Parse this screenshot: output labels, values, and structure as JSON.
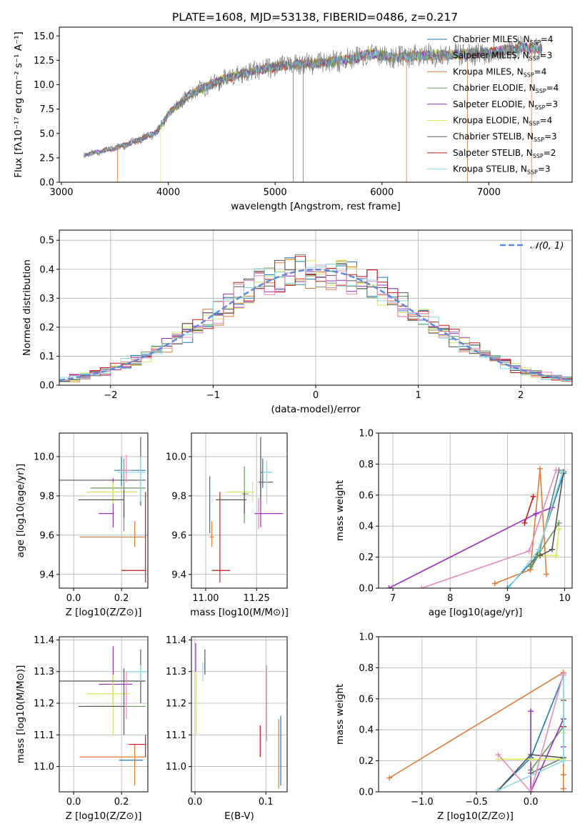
{
  "title": "PLATE=1608, MJD=53138, FIBERID=0486, z=0.217",
  "colors": {
    "chabrier_miles": "#1f77b4",
    "salpeter_miles": "#777777",
    "kroupa_miles": "#e07b39",
    "chabrier_elodie": "#6a9a5b",
    "salpeter_elodie": "#9a2fbf",
    "kroupa_elodie": "#d4e85a",
    "chabrier_stelib": "#555555",
    "salpeter_stelib": "#c41818",
    "kroupa_stelib": "#88dede",
    "pink": "#e38cc0",
    "normal": "#5b8bd9"
  },
  "chart_data": [
    {
      "id": "spectrum",
      "type": "line",
      "xlabel": "wavelength [Angstrom, rest frame]",
      "ylabel": "Flux [fλ10⁻¹⁷ erg cm⁻² s⁻¹ A⁻¹]",
      "xlim": [
        2980,
        7780
      ],
      "ylim": [
        0,
        15.9
      ],
      "xticks": [
        3000,
        4000,
        5000,
        6000,
        7000
      ],
      "yticks": [
        0.0,
        2.5,
        5.0,
        7.5,
        10.0,
        12.5,
        15.0
      ],
      "grid": false,
      "legend_position": "right",
      "approx_continuum": {
        "x": [
          3200,
          3300,
          3500,
          3700,
          3900,
          4000,
          4200,
          4500,
          4800,
          5100,
          5400,
          5700,
          5900,
          6100,
          6400,
          6700,
          7000,
          7300,
          7500
        ],
        "y": [
          2.8,
          3.0,
          3.5,
          4.2,
          5.2,
          7.0,
          9.0,
          10.5,
          11.4,
          12.0,
          12.2,
          12.6,
          13.2,
          12.8,
          13.0,
          13.1,
          13.3,
          13.8,
          13.6
        ]
      },
      "legend": [
        {
          "label": "Chabrier MILES, N",
          "suffix": "=4",
          "color": "#1f77b4"
        },
        {
          "label": "Salpeter MILES, N",
          "suffix": "=3",
          "color": "#777777"
        },
        {
          "label": "Kroupa MILES, N",
          "suffix": "=4",
          "color": "#e07b39"
        },
        {
          "label": "Chabrier ELODIE, N",
          "suffix": "=4",
          "color": "#6a9a5b"
        },
        {
          "label": "Salpeter ELODIE, N",
          "suffix": "=3",
          "color": "#9a2fbf"
        },
        {
          "label": "Kroupa ELODIE, N",
          "suffix": "=4",
          "color": "#d4e85a"
        },
        {
          "label": "Chabrier STELIB, N",
          "suffix": "=3",
          "color": "#555555"
        },
        {
          "label": "Salpeter STELIB, N",
          "suffix": "=2",
          "color": "#c41818"
        },
        {
          "label": "Kroupa STELIB, N",
          "suffix": "=3",
          "color": "#88dede"
        }
      ]
    },
    {
      "id": "residuals",
      "type": "histogram",
      "xlabel": "(data-model)/error",
      "ylabel": "Normed distribution",
      "xlim": [
        -2.5,
        2.5
      ],
      "ylim": [
        0,
        0.535
      ],
      "xticks": [
        -2,
        -1,
        0,
        1,
        2
      ],
      "yticks": [
        0.0,
        0.1,
        0.2,
        0.3,
        0.4,
        0.5
      ],
      "grid": true,
      "legend_position": "top-right",
      "normal_label": "𝒩(0, 1)",
      "bin_width": 0.1
    },
    {
      "id": "age_vs_Z",
      "type": "errorbar",
      "xlabel": "Z [log10(Z/Z⊙)]",
      "ylabel": "age [log10(age/yr)]",
      "xlim": [
        -0.06,
        0.31
      ],
      "ylim": [
        9.33,
        10.12
      ],
      "xticks": [
        0.0,
        0.2
      ],
      "yticks": [
        9.4,
        9.6,
        9.8,
        10.0
      ],
      "grid": true,
      "points": [
        {
          "series": "Chabrier MILES",
          "x": 0.2,
          "y": 9.93,
          "xerr": [
            0.03,
            0.1
          ],
          "yerr": [
            0.08,
            0.07
          ]
        },
        {
          "series": "Kroupa MILES",
          "x": 0.255,
          "y": 9.59,
          "xerr": [
            0.23,
            0.045
          ],
          "yerr": [
            0.05,
            0.08
          ]
        },
        {
          "series": "Chabrier ELODIE",
          "x": 0.21,
          "y": 9.84,
          "xerr": [
            0.14,
            0.09
          ],
          "yerr": [
            0.22,
            0.15
          ]
        },
        {
          "series": "Salpeter ELODIE",
          "x": 0.165,
          "y": 9.71,
          "xerr": [
            0.06,
            0.0
          ],
          "yerr": [
            0.07,
            0.18
          ]
        },
        {
          "series": "Kroupa ELODIE",
          "x": 0.165,
          "y": 9.82,
          "xerr": [
            0.11,
            0.1
          ],
          "yerr": [
            0.06,
            0.05
          ]
        },
        {
          "series": "Chabrier STELIB",
          "x": 0.21,
          "y": 9.78,
          "xerr": [
            0.19,
            0.0
          ],
          "yerr": [
            0.09,
            0.05
          ]
        },
        {
          "series": "Chabrier STELIB",
          "x": 0.28,
          "y": 9.88,
          "xerr": [
            0.34,
            0.02
          ],
          "yerr": [
            0.13,
            0.22
          ]
        },
        {
          "series": "Salpeter STELIB",
          "x": 0.3,
          "y": 9.42,
          "xerr": [
            0.1,
            0.0
          ],
          "yerr": [
            0.06,
            0.4
          ]
        },
        {
          "series": "Kroupa STELIB",
          "x": 0.28,
          "y": 9.92,
          "xerr": [
            0.1,
            0.02
          ],
          "yerr": [
            0.15,
            0.08
          ]
        },
        {
          "series": "Pink",
          "x": 0.22,
          "y": 9.93,
          "xerr": [
            0.03,
            0.02
          ],
          "yerr": [
            0.06,
            0.08
          ]
        }
      ]
    },
    {
      "id": "age_vs_mass",
      "type": "errorbar",
      "xlabel": "mass [log10(M/M⊙)]",
      "ylabel": "",
      "xlim": [
        10.93,
        11.4
      ],
      "ylim": [
        9.33,
        10.12
      ],
      "xticks": [
        11.0,
        11.25
      ],
      "yticks": [
        9.4,
        9.6,
        9.8,
        10.0
      ],
      "grid": true,
      "points": [
        {
          "series": "Chabrier MILES",
          "x": 11.28,
          "y": 9.92,
          "xerr": [
            0.01,
            0.04
          ],
          "yerr": [
            0.08,
            0.07
          ]
        },
        {
          "series": "Kroupa MILES",
          "x": 11.03,
          "y": 9.59,
          "xerr": [
            0.01,
            0.01
          ],
          "yerr": [
            0.05,
            0.08
          ]
        },
        {
          "series": "Chabrier ELODIE",
          "x": 11.19,
          "y": 9.81,
          "xerr": [
            0.01,
            0.02
          ],
          "yerr": [
            0.15,
            0.14
          ]
        },
        {
          "series": "Salpeter ELODIE",
          "x": 11.27,
          "y": 9.71,
          "xerr": [
            0.03,
            0.11
          ],
          "yerr": [
            0.07,
            0.19
          ]
        },
        {
          "series": "Kroupa ELODIE",
          "x": 11.23,
          "y": 9.82,
          "xerr": [
            0.13,
            0.01
          ],
          "yerr": [
            0.05,
            0.05
          ]
        },
        {
          "series": "Chabrier STELIB",
          "x": 11.19,
          "y": 9.78,
          "xerr": [
            0.14,
            0.01
          ],
          "yerr": [
            0.07,
            0.04
          ]
        },
        {
          "series": "Chabrier STELIB",
          "x": 11.27,
          "y": 9.87,
          "xerr": [
            0.01,
            0.06
          ],
          "yerr": [
            0.09,
            0.23
          ]
        },
        {
          "series": "Salpeter STELIB",
          "x": 11.07,
          "y": 9.42,
          "xerr": [
            0.04,
            0.05
          ],
          "yerr": [
            0.06,
            0.4
          ]
        },
        {
          "series": "Kroupa STELIB",
          "x": 11.3,
          "y": 9.92,
          "xerr": [
            0.02,
            0.03
          ],
          "yerr": [
            0.16,
            0.06
          ]
        },
        {
          "series": "Pink",
          "x": 11.26,
          "y": 9.72,
          "xerr": [
            0.0,
            0.0
          ],
          "yerr": [
            0.09,
            0.07
          ]
        },
        {
          "series": "Blue",
          "x": 11.02,
          "y": 9.77,
          "xerr": [
            0.0,
            0.0
          ],
          "yerr": [
            0.16,
            0.13
          ]
        }
      ]
    },
    {
      "id": "weight_vs_age",
      "type": "line",
      "xlabel": "age  [log10(age/yr)]",
      "ylabel": "mass weight",
      "xlim": [
        6.75,
        10.13
      ],
      "ylim": [
        0,
        1.0
      ],
      "xticks": [
        7,
        8,
        9,
        10
      ],
      "yticks": [
        0.0,
        0.2,
        0.4,
        0.6,
        0.8,
        1.0
      ],
      "grid": true,
      "series": [
        {
          "name": "Chabrier MILES",
          "x": [
            9.0,
            9.5,
            9.98
          ],
          "y": [
            0.0,
            0.2,
            0.74
          ]
        },
        {
          "name": "Salpeter MILES",
          "x": [
            9.4,
            9.55,
            9.9
          ],
          "y": [
            0.12,
            0.22,
            0.76
          ]
        },
        {
          "name": "Kroupa MILES",
          "x": [
            8.78,
            9.4,
            9.57,
            9.68
          ],
          "y": [
            0.03,
            0.12,
            0.77,
            0.09
          ]
        },
        {
          "name": "Chabrier ELODIE",
          "x": [
            9.4,
            9.9
          ],
          "y": [
            0.14,
            0.42
          ]
        },
        {
          "name": "Salpeter ELODIE",
          "x": [
            6.93,
            9.5,
            9.78
          ],
          "y": [
            0.0,
            0.48,
            0.52
          ]
        },
        {
          "name": "Kroupa ELODIE",
          "x": [
            9.55,
            9.85,
            9.9
          ],
          "y": [
            0.21,
            0.21,
            0.38
          ]
        },
        {
          "name": "Chabrier STELIB",
          "x": [
            9.57,
            9.78,
            9.98
          ],
          "y": [
            0.21,
            0.25,
            0.75
          ]
        },
        {
          "name": "Salpeter STELIB",
          "x": [
            9.3,
            9.45
          ],
          "y": [
            0.42,
            0.59
          ]
        },
        {
          "name": "Kroupa STELIB",
          "x": [
            9.02,
            9.55,
            9.96
          ],
          "y": [
            0.0,
            0.25,
            0.75
          ]
        },
        {
          "name": "Pink",
          "x": [
            7.5,
            9.38,
            9.85
          ],
          "y": [
            0.0,
            0.24,
            0.76
          ]
        }
      ]
    },
    {
      "id": "mass_vs_Z",
      "type": "errorbar",
      "xlabel": "Z [log10(Z/Z⊙)]",
      "ylabel": "mass [log10(M/M⊙)]",
      "xlim": [
        -0.06,
        0.31
      ],
      "ylim": [
        10.92,
        11.41
      ],
      "xticks": [
        0.0,
        0.2
      ],
      "yticks": [
        11.0,
        11.1,
        11.2,
        11.3,
        11.4
      ],
      "grid": true,
      "points": [
        {
          "series": "Chabrier MILES",
          "x": 0.2,
          "y": 11.02,
          "xerr": [
            0.01,
            0.09
          ],
          "yerr": [
            0.0,
            0.0
          ]
        },
        {
          "series": "Kroupa MILES",
          "x": 0.255,
          "y": 11.03,
          "xerr": [
            0.23,
            0.045
          ],
          "yerr": [
            0.09,
            0.04
          ]
        },
        {
          "series": "Chabrier ELODIE",
          "x": 0.21,
          "y": 11.19,
          "xerr": [
            0.14,
            0.09
          ],
          "yerr": [
            0.0,
            0.0
          ]
        },
        {
          "series": "Salpeter ELODIE",
          "x": 0.165,
          "y": 11.26,
          "xerr": [
            0.06,
            0.08
          ],
          "yerr": [
            0.06,
            0.12
          ]
        },
        {
          "series": "Kroupa ELODIE",
          "x": 0.165,
          "y": 11.23,
          "xerr": [
            0.11,
            0.07
          ],
          "yerr": [
            0.13,
            0.06
          ]
        },
        {
          "series": "Chabrier STELIB",
          "x": 0.21,
          "y": 11.19,
          "xerr": [
            0.19,
            0.0
          ],
          "yerr": [
            0.09,
            0.12
          ]
        },
        {
          "series": "Chabrier STELIB",
          "x": 0.28,
          "y": 11.27,
          "xerr": [
            0.34,
            0.02
          ],
          "yerr": [
            0.07,
            0.1
          ]
        },
        {
          "series": "Salpeter STELIB",
          "x": 0.3,
          "y": 11.07,
          "xerr": [
            0.07,
            0.0
          ],
          "yerr": [
            0.04,
            0.03
          ]
        },
        {
          "series": "Kroupa STELIB",
          "x": 0.28,
          "y": 11.3,
          "xerr": [
            0.06,
            0.03
          ],
          "yerr": [
            0.03,
            0.02
          ]
        },
        {
          "series": "Pink",
          "x": 0.22,
          "y": 11.27,
          "xerr": [
            0.0,
            0.0
          ],
          "yerr": [
            0.12,
            0.03
          ]
        }
      ]
    },
    {
      "id": "mass_vs_EBV",
      "type": "errorbar",
      "xlabel": "E(B-V)",
      "ylabel": "",
      "xlim": [
        -0.005,
        0.13
      ],
      "ylim": [
        10.92,
        11.41
      ],
      "xticks": [
        0.0,
        0.1
      ],
      "yticks": [
        11.0,
        11.1,
        11.2,
        11.3,
        11.4
      ],
      "grid": true,
      "points": [
        {
          "series": "Chabrier MILES",
          "x": 0.121,
          "y": 11.05,
          "xerr": [
            0.0,
            0.0
          ],
          "yerr": [
            0.11,
            0.11
          ]
        },
        {
          "series": "Kroupa MILES",
          "x": 0.118,
          "y": 11.03,
          "xerr": [
            0.0,
            0.0
          ],
          "yerr": [
            0.1,
            0.12
          ]
        },
        {
          "series": "Kroupa ELODIE",
          "x": 0.002,
          "y": 11.2,
          "xerr": [
            0.0,
            0.0
          ],
          "yerr": [
            0.1,
            0.1
          ]
        },
        {
          "series": "Salpeter ELODIE",
          "x": 0.001,
          "y": 11.34,
          "xerr": [
            0.0,
            0.0
          ],
          "yerr": [
            0.04,
            0.05
          ]
        },
        {
          "series": "Chabrier STELIB",
          "x": 0.014,
          "y": 11.33,
          "xerr": [
            0.0,
            0.0
          ],
          "yerr": [
            0.04,
            0.04
          ]
        },
        {
          "series": "Salpeter STELIB",
          "x": 0.092,
          "y": 11.08,
          "xerr": [
            0.0,
            0.0
          ],
          "yerr": [
            0.05,
            0.05
          ]
        },
        {
          "series": "Kroupa STELIB",
          "x": 0.011,
          "y": 11.3,
          "xerr": [
            0.0,
            0.0
          ],
          "yerr": [
            0.03,
            0.03
          ]
        },
        {
          "series": "Pink",
          "x": 0.101,
          "y": 11.2,
          "xerr": [
            0.0,
            0.0
          ],
          "yerr": [
            0.12,
            0.12
          ]
        }
      ]
    },
    {
      "id": "weight_vs_Z",
      "type": "line",
      "xlabel": "Z [log10(Z/Z⊙)]",
      "ylabel": "mass weight",
      "xlim": [
        -1.4,
        0.38
      ],
      "ylim": [
        0,
        1.0
      ],
      "xticks": [
        -1.0,
        -0.5,
        0.0
      ],
      "yticks": [
        0.0,
        0.2,
        0.4,
        0.6,
        0.8,
        1.0
      ],
      "grid": true,
      "series": [
        {
          "name": "Chabrier MILES",
          "x": [
            -0.3,
            0.0,
            0.3
          ],
          "y": [
            0.01,
            0.22,
            0.75
          ]
        },
        {
          "name": "Salpeter MILES",
          "x": [
            0.0,
            0.3,
            0.3
          ],
          "y": [
            0.12,
            0.22,
            0.75
          ]
        },
        {
          "name": "Kroupa MILES",
          "x": [
            -1.3,
            0.3,
            0.3,
            0.3
          ],
          "y": [
            0.09,
            0.77,
            0.11,
            0.02
          ]
        },
        {
          "name": "Chabrier ELODIE",
          "x": [
            0.0,
            0.3
          ],
          "y": [
            0.14,
            0.42
          ]
        },
        {
          "name": "Salpeter ELODIE",
          "x": [
            0.0,
            0.0,
            0.3,
            0.3
          ],
          "y": [
            0.52,
            0.0,
            0.47,
            0.29
          ]
        },
        {
          "name": "Kroupa ELODIE",
          "x": [
            -0.3,
            0.0,
            0.3,
            0.3
          ],
          "y": [
            0.21,
            0.21,
            0.21,
            0.38
          ]
        },
        {
          "name": "Chabrier STELIB",
          "x": [
            -0.3,
            0.0,
            0.3
          ],
          "y": [
            0.01,
            0.24,
            0.22
          ]
        },
        {
          "name": "Salpeter STELIB",
          "x": [
            0.3,
            0.3
          ],
          "y": [
            0.42,
            0.59
          ]
        },
        {
          "name": "Kroupa STELIB",
          "x": [
            -0.3,
            0.3,
            0.3
          ],
          "y": [
            0.01,
            0.2,
            0.75
          ]
        },
        {
          "name": "Pink",
          "x": [
            -0.3,
            0.0,
            0.3
          ],
          "y": [
            0.24,
            0.0,
            0.76
          ]
        }
      ]
    }
  ]
}
